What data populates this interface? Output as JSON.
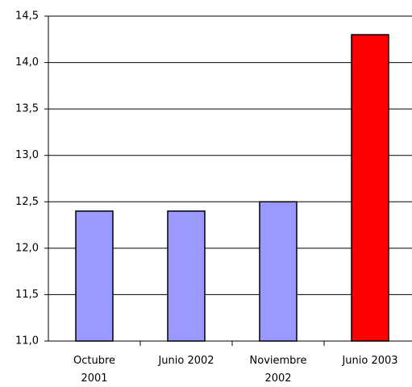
{
  "chart_data": {
    "type": "bar",
    "categories": [
      "Octubre 2001",
      "Junio 2002",
      "Noviembre 2002",
      "Junio 2003"
    ],
    "values": [
      12.4,
      12.4,
      12.5,
      14.3
    ],
    "colors": [
      "#9999ff",
      "#9999ff",
      "#9999ff",
      "#ff0000"
    ],
    "ylim": [
      11.0,
      14.5
    ],
    "yticks": [
      {
        "value": 11.0,
        "label": "11,0"
      },
      {
        "value": 11.5,
        "label": "11,5"
      },
      {
        "value": 12.0,
        "label": "12,0"
      },
      {
        "value": 12.5,
        "label": "12,5"
      },
      {
        "value": 13.0,
        "label": "13,0"
      },
      {
        "value": 13.5,
        "label": "13,5"
      },
      {
        "value": 14.0,
        "label": "14,0"
      },
      {
        "value": 14.5,
        "label": "14,5"
      }
    ],
    "grid": true
  }
}
